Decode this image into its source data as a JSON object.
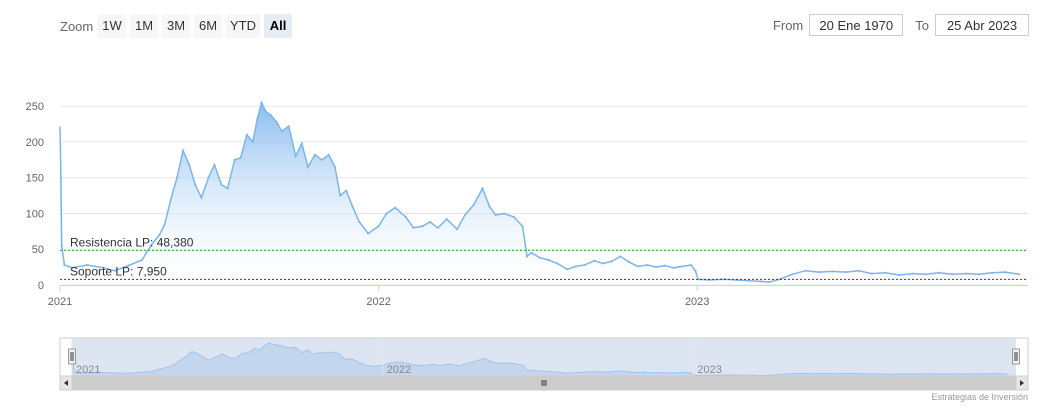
{
  "toolbar": {
    "zoom_label": "Zoom",
    "buttons": [
      "1W",
      "1M",
      "3M",
      "6M",
      "YTD",
      "All"
    ],
    "active_button": "All",
    "from_label": "From",
    "from_value": "20 Ene 1970",
    "to_label": "To",
    "to_value": "25 Abr 2023"
  },
  "colors": {
    "line": "#7cb5ec",
    "area_top": "#7cb5ec",
    "resistance": "#2e9e3c",
    "support": "#8b1a1a",
    "grid": "#e6e6e6",
    "navigator_mask": "#c3cfe8"
  },
  "chart_data": {
    "type": "area",
    "x_unit": "date",
    "ylim": [
      0,
      260
    ],
    "y_ticks": [
      0,
      50,
      100,
      150,
      200,
      250
    ],
    "x_ticks": [
      "2021",
      "2022",
      "2023"
    ],
    "series": [
      {
        "values": [
          [
            "2021-01-01",
            220
          ],
          [
            "2021-01-02",
            150
          ],
          [
            "2021-01-03",
            55
          ],
          [
            "2021-01-06",
            28
          ],
          [
            "2021-01-15",
            24
          ],
          [
            "2021-02-01",
            28
          ],
          [
            "2021-02-20",
            24
          ],
          [
            "2021-03-05",
            20
          ],
          [
            "2021-03-20",
            27
          ],
          [
            "2021-04-05",
            35
          ],
          [
            "2021-04-15",
            55
          ],
          [
            "2021-04-25",
            70
          ],
          [
            "2021-05-01",
            85
          ],
          [
            "2021-05-08",
            120
          ],
          [
            "2021-05-15",
            150
          ],
          [
            "2021-05-22",
            188
          ],
          [
            "2021-05-29",
            168
          ],
          [
            "2021-06-05",
            140
          ],
          [
            "2021-06-12",
            122
          ],
          [
            "2021-06-20",
            150
          ],
          [
            "2021-06-27",
            168
          ],
          [
            "2021-07-05",
            140
          ],
          [
            "2021-07-12",
            135
          ],
          [
            "2021-07-20",
            175
          ],
          [
            "2021-07-27",
            178
          ],
          [
            "2021-08-03",
            210
          ],
          [
            "2021-08-10",
            200
          ],
          [
            "2021-08-15",
            232
          ],
          [
            "2021-08-20",
            255
          ],
          [
            "2021-08-25",
            242
          ],
          [
            "2021-08-30",
            238
          ],
          [
            "2021-09-06",
            228
          ],
          [
            "2021-09-12",
            215
          ],
          [
            "2021-09-20",
            222
          ],
          [
            "2021-09-28",
            180
          ],
          [
            "2021-10-05",
            198
          ],
          [
            "2021-10-12",
            165
          ],
          [
            "2021-10-20",
            182
          ],
          [
            "2021-10-28",
            175
          ],
          [
            "2021-11-05",
            182
          ],
          [
            "2021-11-12",
            165
          ],
          [
            "2021-11-18",
            125
          ],
          [
            "2021-11-25",
            132
          ],
          [
            "2021-12-02",
            110
          ],
          [
            "2021-12-10",
            88
          ],
          [
            "2021-12-20",
            72
          ],
          [
            "2022-01-01",
            82
          ],
          [
            "2022-01-10",
            100
          ],
          [
            "2022-01-20",
            108
          ],
          [
            "2022-02-01",
            95
          ],
          [
            "2022-02-10",
            80
          ],
          [
            "2022-02-20",
            82
          ],
          [
            "2022-03-01",
            88
          ],
          [
            "2022-03-10",
            80
          ],
          [
            "2022-03-20",
            92
          ],
          [
            "2022-04-01",
            78
          ],
          [
            "2022-04-10",
            98
          ],
          [
            "2022-04-20",
            112
          ],
          [
            "2022-04-30",
            135
          ],
          [
            "2022-05-08",
            110
          ],
          [
            "2022-05-15",
            98
          ],
          [
            "2022-05-25",
            100
          ],
          [
            "2022-06-05",
            95
          ],
          [
            "2022-06-15",
            82
          ],
          [
            "2022-06-20",
            40
          ],
          [
            "2022-06-25",
            45
          ],
          [
            "2022-07-05",
            38
          ],
          [
            "2022-07-15",
            35
          ],
          [
            "2022-07-25",
            30
          ],
          [
            "2022-08-05",
            22
          ],
          [
            "2022-08-15",
            26
          ],
          [
            "2022-08-25",
            28
          ],
          [
            "2022-09-05",
            34
          ],
          [
            "2022-09-15",
            30
          ],
          [
            "2022-09-25",
            33
          ],
          [
            "2022-10-05",
            40
          ],
          [
            "2022-10-15",
            32
          ],
          [
            "2022-10-25",
            26
          ],
          [
            "2022-11-05",
            28
          ],
          [
            "2022-11-15",
            25
          ],
          [
            "2022-11-25",
            27
          ],
          [
            "2022-12-05",
            24
          ],
          [
            "2022-12-15",
            26
          ],
          [
            "2022-12-25",
            28
          ],
          [
            "2022-12-30",
            20
          ],
          [
            "2023-01-02",
            8
          ],
          [
            "2023-01-15",
            7
          ],
          [
            "2023-02-01",
            8
          ],
          [
            "2023-02-15",
            7
          ],
          [
            "2023-03-01",
            6
          ],
          [
            "2023-03-15",
            5
          ],
          [
            "2023-03-25",
            4
          ],
          [
            "2023-04-05",
            8
          ],
          [
            "2023-04-20",
            15
          ],
          [
            "2023-05-05",
            20
          ],
          [
            "2023-05-20",
            18
          ],
          [
            "2023-06-05",
            19
          ],
          [
            "2023-06-20",
            18
          ],
          [
            "2023-07-05",
            20
          ],
          [
            "2023-07-20",
            16
          ],
          [
            "2023-08-05",
            17
          ],
          [
            "2023-08-20",
            14
          ],
          [
            "2023-09-05",
            16
          ],
          [
            "2023-09-20",
            15
          ],
          [
            "2023-10-05",
            17
          ],
          [
            "2023-10-20",
            15
          ],
          [
            "2023-11-05",
            16
          ],
          [
            "2023-11-20",
            15
          ],
          [
            "2023-12-05",
            17
          ],
          [
            "2023-12-20",
            18
          ],
          [
            "2024-01-05",
            15
          ]
        ]
      }
    ],
    "plot_lines": [
      {
        "label": "Resistencia LP: 48,380",
        "value": 48.38
      },
      {
        "label": "Soporte LP: 7,950",
        "value": 7.95
      }
    ],
    "navigator": {
      "x_ticks": [
        "2021",
        "2022",
        "2023"
      ]
    }
  },
  "credits": "Estrategias de Inversión"
}
